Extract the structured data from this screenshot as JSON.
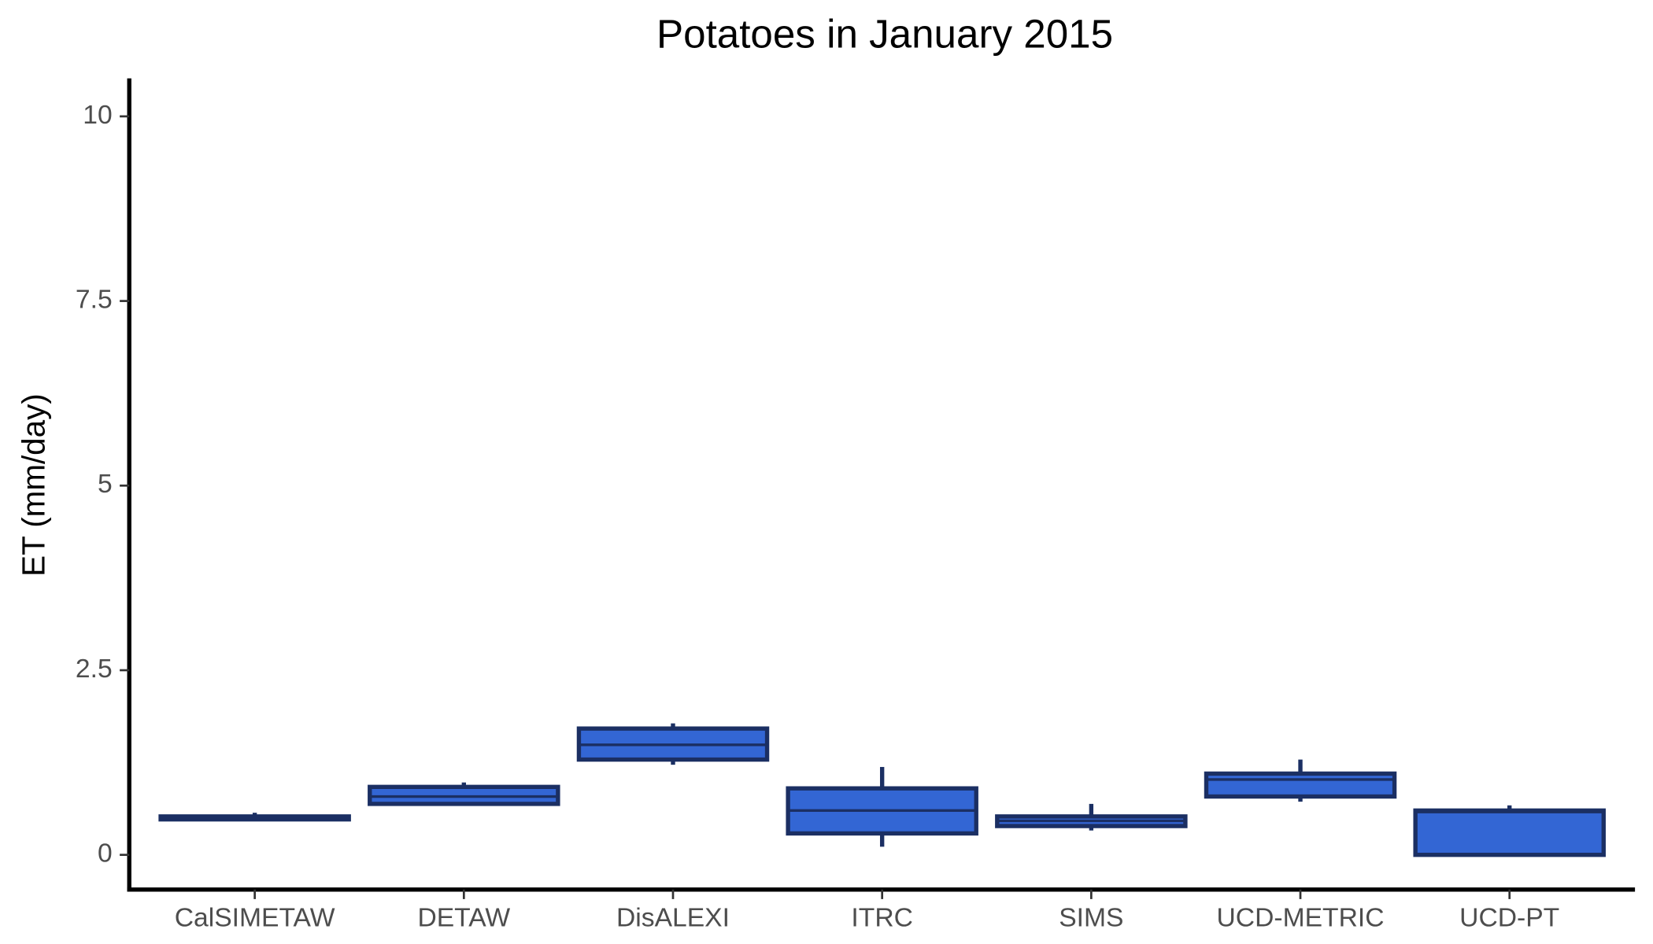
{
  "chart_data": {
    "type": "box",
    "title": "Potatoes in January 2015",
    "y_label": "ET (mm/day)",
    "categories": [
      "CalSIMETAW",
      "DETAW",
      "DisALEXI",
      "ITRC",
      "SIMS",
      "UCD-METRIC",
      "UCD-PT"
    ],
    "boxes": [
      {
        "min": 0.47,
        "q1": 0.48,
        "median": 0.5,
        "q3": 0.52,
        "max": 0.57
      },
      {
        "min": 0.69,
        "q1": 0.69,
        "median": 0.79,
        "q3": 0.92,
        "max": 0.98
      },
      {
        "min": 1.22,
        "q1": 1.29,
        "median": 1.49,
        "q3": 1.71,
        "max": 1.78
      },
      {
        "min": 0.11,
        "q1": 0.29,
        "median": 0.6,
        "q3": 0.9,
        "max": 1.19
      },
      {
        "min": 0.33,
        "q1": 0.39,
        "median": 0.46,
        "q3": 0.52,
        "max": 0.69
      },
      {
        "min": 0.72,
        "q1": 0.79,
        "median": 1.02,
        "q3": 1.1,
        "max": 1.29
      },
      {
        "min": 0,
        "q1": 0,
        "median": 0.58,
        "q3": 0.6,
        "max": 0.67
      }
    ],
    "color": "#3366d4",
    "edge_color": "#1b2f63",
    "ylim": [
      -0.47,
      10.5
    ],
    "yticks": [
      0,
      2.5,
      5,
      7.5,
      10
    ]
  }
}
